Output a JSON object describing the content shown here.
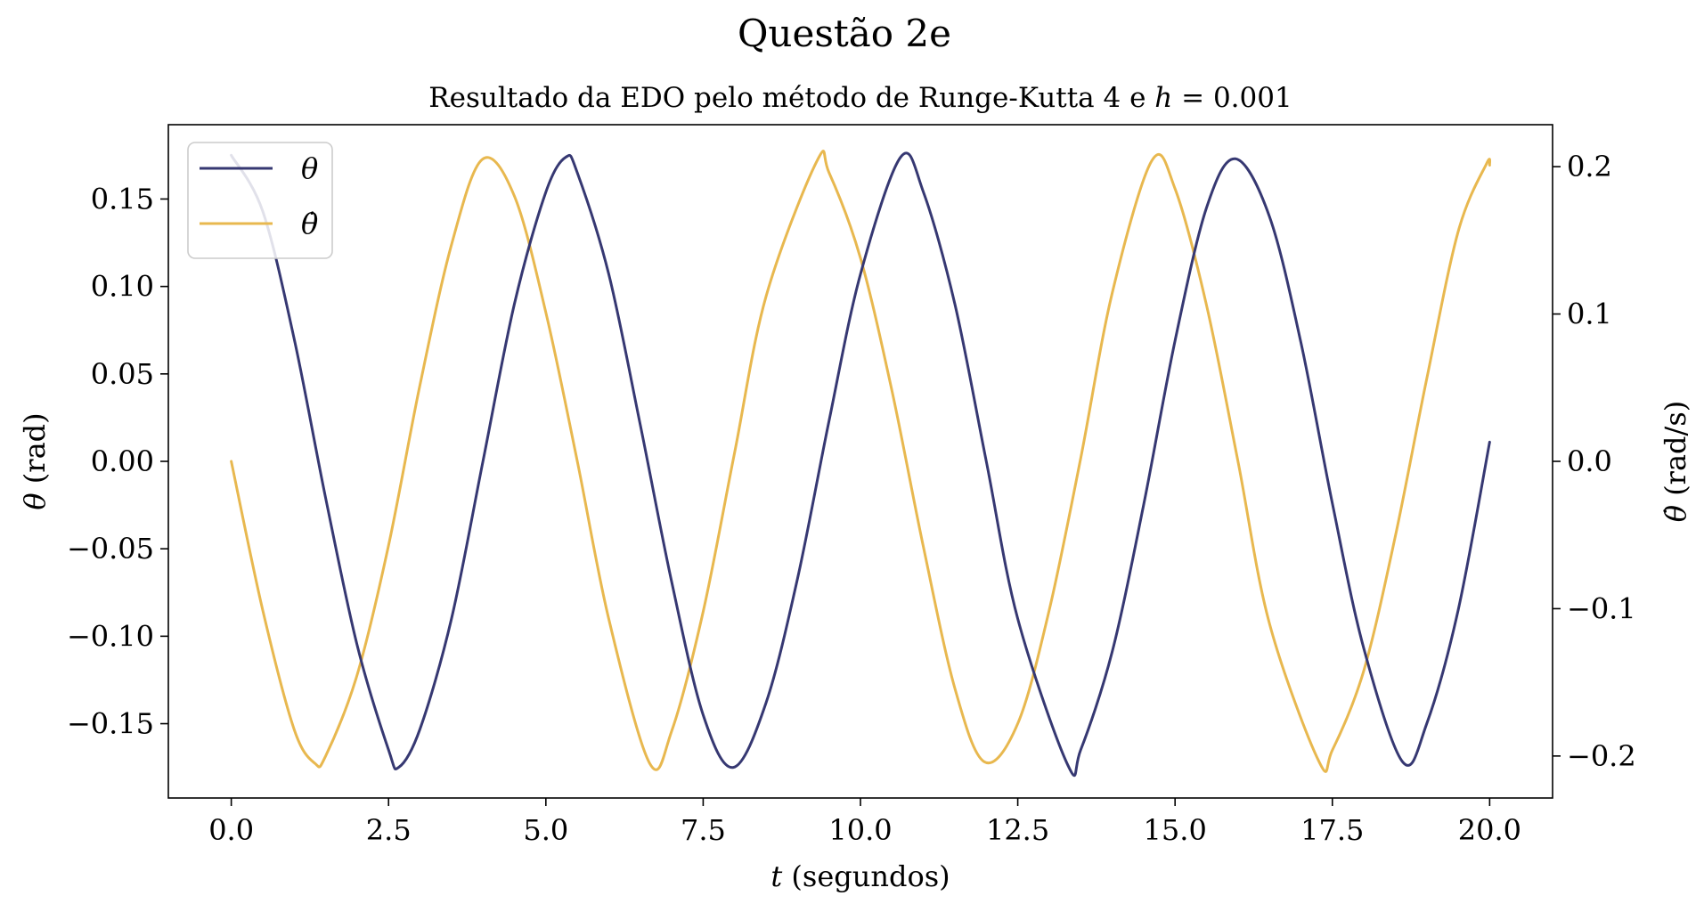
{
  "figure": {
    "suptitle": "Questão 2e",
    "title_prefix": "Resultado da EDO pelo método de Runge-Kutta 4 e ",
    "title_math_var": "h",
    "title_math_rest": " = 0.001"
  },
  "chart_data": {
    "type": "line",
    "x_axis": {
      "label_var": "t",
      "label_rest": " (segundos)",
      "range": [
        -1.0,
        21.0
      ],
      "ticks": [
        0.0,
        2.5,
        5.0,
        7.5,
        10.0,
        12.5,
        15.0,
        17.5,
        20.0
      ],
      "tick_labels": [
        "0.0",
        "2.5",
        "5.0",
        "7.5",
        "10.0",
        "12.5",
        "15.0",
        "17.5",
        "20.0"
      ]
    },
    "y_axis_left": {
      "label_var": "θ",
      "label_rest": " (rad)",
      "range": [
        -0.1925,
        0.1925
      ],
      "ticks": [
        -0.15,
        -0.1,
        -0.05,
        0.0,
        0.05,
        0.1,
        0.15
      ],
      "tick_labels": [
        "−0.15",
        "−0.10",
        "−0.05",
        "0.00",
        "0.05",
        "0.10",
        "0.15"
      ]
    },
    "y_axis_right": {
      "label_var": "θ̇",
      "label_rest": " (rad/s)",
      "range": [
        -0.2285,
        0.2285
      ],
      "ticks": [
        -0.2,
        -0.1,
        0.0,
        0.1,
        0.2
      ],
      "tick_labels": [
        "−0.2",
        "−0.1",
        "0.0",
        "0.1",
        "0.2"
      ]
    },
    "series": [
      {
        "name": "θ",
        "axis": "left",
        "color": "#363872",
        "x": [
          0.0,
          0.5,
          1.0,
          1.5,
          2.0,
          2.5,
          2.66,
          3.0,
          3.5,
          4.0,
          4.5,
          5.0,
          5.32,
          5.5,
          6.0,
          6.5,
          7.0,
          7.5,
          7.98,
          8.5,
          9.0,
          9.5,
          10.0,
          10.64,
          11.0,
          11.5,
          12.0,
          12.5,
          13.3,
          13.5,
          14.0,
          14.5,
          15.0,
          15.5,
          15.96,
          16.5,
          17.0,
          17.5,
          18.0,
          18.62,
          19.0,
          19.5,
          20.0
        ],
        "values": [
          0.175,
          0.143,
          0.07,
          -0.021,
          -0.105,
          -0.165,
          -0.175,
          -0.153,
          -0.09,
          0.0,
          0.09,
          0.154,
          0.174,
          0.165,
          0.107,
          0.021,
          -0.069,
          -0.145,
          -0.175,
          -0.138,
          -0.067,
          0.023,
          0.107,
          0.174,
          0.154,
          0.09,
          0.0,
          -0.09,
          -0.174,
          -0.165,
          -0.109,
          -0.025,
          0.069,
          0.145,
          0.173,
          0.14,
          0.068,
          -0.024,
          -0.107,
          -0.172,
          -0.15,
          -0.085,
          0.011
        ]
      },
      {
        "name": "θ̇",
        "axis": "right",
        "color": "#e8b84f",
        "x": [
          0.0,
          0.5,
          1.0,
          1.33,
          1.5,
          2.0,
          2.5,
          3.0,
          3.5,
          3.99,
          4.5,
          5.0,
          5.5,
          6.0,
          6.65,
          7.0,
          7.5,
          8.0,
          8.5,
          9.31,
          9.5,
          10.0,
          10.5,
          11.0,
          11.5,
          11.97,
          12.5,
          13.0,
          13.5,
          14.0,
          14.63,
          15.0,
          15.5,
          16.0,
          16.5,
          17.29,
          17.5,
          18.0,
          18.5,
          19.0,
          19.5,
          19.95,
          20.0
        ],
        "values": [
          0.0,
          -0.101,
          -0.182,
          -0.205,
          -0.2,
          -0.145,
          -0.057,
          0.052,
          0.147,
          0.205,
          0.18,
          0.101,
          0.0,
          -0.107,
          -0.205,
          -0.183,
          -0.102,
          0.006,
          0.112,
          0.204,
          0.196,
          0.138,
          0.048,
          -0.058,
          -0.154,
          -0.204,
          -0.178,
          -0.101,
          0.002,
          0.114,
          0.204,
          0.185,
          0.106,
          0.0,
          -0.11,
          -0.204,
          -0.196,
          -0.142,
          -0.051,
          0.056,
          0.156,
          0.202,
          0.201
        ]
      }
    ],
    "legend": {
      "placement": "upper-left",
      "entries": [
        "θ",
        "θ̇"
      ]
    },
    "grid": false
  }
}
